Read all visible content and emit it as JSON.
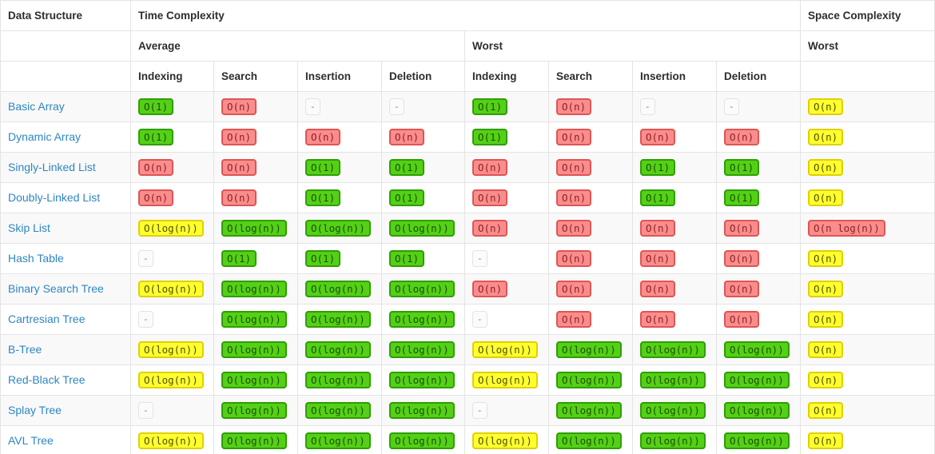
{
  "table": {
    "header": {
      "data_structure": "Data Structure",
      "time_complexity": "Time Complexity",
      "space_complexity": "Space Complexity",
      "average": "Average",
      "worst": "Worst",
      "space_worst": "Worst",
      "ops": [
        "Indexing",
        "Search",
        "Insertion",
        "Deletion",
        "Indexing",
        "Search",
        "Insertion",
        "Deletion"
      ]
    },
    "rows": [
      {
        "name": "Basic Array",
        "cells": [
          {
            "text": "O(1)",
            "level": "green"
          },
          {
            "text": "O(n)",
            "level": "red"
          },
          {
            "text": "-",
            "level": "gray"
          },
          {
            "text": "-",
            "level": "gray"
          },
          {
            "text": "O(1)",
            "level": "green"
          },
          {
            "text": "O(n)",
            "level": "red"
          },
          {
            "text": "-",
            "level": "gray"
          },
          {
            "text": "-",
            "level": "gray"
          },
          {
            "text": "O(n)",
            "level": "yellow"
          }
        ]
      },
      {
        "name": "Dynamic Array",
        "cells": [
          {
            "text": "O(1)",
            "level": "green"
          },
          {
            "text": "O(n)",
            "level": "red"
          },
          {
            "text": "O(n)",
            "level": "red"
          },
          {
            "text": "O(n)",
            "level": "red"
          },
          {
            "text": "O(1)",
            "level": "green"
          },
          {
            "text": "O(n)",
            "level": "red"
          },
          {
            "text": "O(n)",
            "level": "red"
          },
          {
            "text": "O(n)",
            "level": "red"
          },
          {
            "text": "O(n)",
            "level": "yellow"
          }
        ]
      },
      {
        "name": "Singly-Linked List",
        "cells": [
          {
            "text": "O(n)",
            "level": "red"
          },
          {
            "text": "O(n)",
            "level": "red"
          },
          {
            "text": "O(1)",
            "level": "green"
          },
          {
            "text": "O(1)",
            "level": "green"
          },
          {
            "text": "O(n)",
            "level": "red"
          },
          {
            "text": "O(n)",
            "level": "red"
          },
          {
            "text": "O(1)",
            "level": "green"
          },
          {
            "text": "O(1)",
            "level": "green"
          },
          {
            "text": "O(n)",
            "level": "yellow"
          }
        ]
      },
      {
        "name": "Doubly-Linked List",
        "cells": [
          {
            "text": "O(n)",
            "level": "red"
          },
          {
            "text": "O(n)",
            "level": "red"
          },
          {
            "text": "O(1)",
            "level": "green"
          },
          {
            "text": "O(1)",
            "level": "green"
          },
          {
            "text": "O(n)",
            "level": "red"
          },
          {
            "text": "O(n)",
            "level": "red"
          },
          {
            "text": "O(1)",
            "level": "green"
          },
          {
            "text": "O(1)",
            "level": "green"
          },
          {
            "text": "O(n)",
            "level": "yellow"
          }
        ]
      },
      {
        "name": "Skip List",
        "cells": [
          {
            "text": "O(log(n))",
            "level": "yellow"
          },
          {
            "text": "O(log(n))",
            "level": "green"
          },
          {
            "text": "O(log(n))",
            "level": "green"
          },
          {
            "text": "O(log(n))",
            "level": "green"
          },
          {
            "text": "O(n)",
            "level": "red"
          },
          {
            "text": "O(n)",
            "level": "red"
          },
          {
            "text": "O(n)",
            "level": "red"
          },
          {
            "text": "O(n)",
            "level": "red"
          },
          {
            "text": "O(n log(n))",
            "level": "red"
          }
        ]
      },
      {
        "name": "Hash Table",
        "cells": [
          {
            "text": "-",
            "level": "gray"
          },
          {
            "text": "O(1)",
            "level": "green"
          },
          {
            "text": "O(1)",
            "level": "green"
          },
          {
            "text": "O(1)",
            "level": "green"
          },
          {
            "text": "-",
            "level": "gray"
          },
          {
            "text": "O(n)",
            "level": "red"
          },
          {
            "text": "O(n)",
            "level": "red"
          },
          {
            "text": "O(n)",
            "level": "red"
          },
          {
            "text": "O(n)",
            "level": "yellow"
          }
        ]
      },
      {
        "name": "Binary Search Tree",
        "cells": [
          {
            "text": "O(log(n))",
            "level": "yellow"
          },
          {
            "text": "O(log(n))",
            "level": "green"
          },
          {
            "text": "O(log(n))",
            "level": "green"
          },
          {
            "text": "O(log(n))",
            "level": "green"
          },
          {
            "text": "O(n)",
            "level": "red"
          },
          {
            "text": "O(n)",
            "level": "red"
          },
          {
            "text": "O(n)",
            "level": "red"
          },
          {
            "text": "O(n)",
            "level": "red"
          },
          {
            "text": "O(n)",
            "level": "yellow"
          }
        ]
      },
      {
        "name": "Cartresian Tree",
        "cells": [
          {
            "text": "-",
            "level": "gray"
          },
          {
            "text": "O(log(n))",
            "level": "green"
          },
          {
            "text": "O(log(n))",
            "level": "green"
          },
          {
            "text": "O(log(n))",
            "level": "green"
          },
          {
            "text": "-",
            "level": "gray"
          },
          {
            "text": "O(n)",
            "level": "red"
          },
          {
            "text": "O(n)",
            "level": "red"
          },
          {
            "text": "O(n)",
            "level": "red"
          },
          {
            "text": "O(n)",
            "level": "yellow"
          }
        ]
      },
      {
        "name": "B-Tree",
        "cells": [
          {
            "text": "O(log(n))",
            "level": "yellow"
          },
          {
            "text": "O(log(n))",
            "level": "green"
          },
          {
            "text": "O(log(n))",
            "level": "green"
          },
          {
            "text": "O(log(n))",
            "level": "green"
          },
          {
            "text": "O(log(n))",
            "level": "yellow"
          },
          {
            "text": "O(log(n))",
            "level": "green"
          },
          {
            "text": "O(log(n))",
            "level": "green"
          },
          {
            "text": "O(log(n))",
            "level": "green"
          },
          {
            "text": "O(n)",
            "level": "yellow"
          }
        ]
      },
      {
        "name": "Red-Black Tree",
        "cells": [
          {
            "text": "O(log(n))",
            "level": "yellow"
          },
          {
            "text": "O(log(n))",
            "level": "green"
          },
          {
            "text": "O(log(n))",
            "level": "green"
          },
          {
            "text": "O(log(n))",
            "level": "green"
          },
          {
            "text": "O(log(n))",
            "level": "yellow"
          },
          {
            "text": "O(log(n))",
            "level": "green"
          },
          {
            "text": "O(log(n))",
            "level": "green"
          },
          {
            "text": "O(log(n))",
            "level": "green"
          },
          {
            "text": "O(n)",
            "level": "yellow"
          }
        ]
      },
      {
        "name": "Splay Tree",
        "cells": [
          {
            "text": "-",
            "level": "gray"
          },
          {
            "text": "O(log(n))",
            "level": "green"
          },
          {
            "text": "O(log(n))",
            "level": "green"
          },
          {
            "text": "O(log(n))",
            "level": "green"
          },
          {
            "text": "-",
            "level": "gray"
          },
          {
            "text": "O(log(n))",
            "level": "green"
          },
          {
            "text": "O(log(n))",
            "level": "green"
          },
          {
            "text": "O(log(n))",
            "level": "green"
          },
          {
            "text": "O(n)",
            "level": "yellow"
          }
        ]
      },
      {
        "name": "AVL Tree",
        "cells": [
          {
            "text": "O(log(n))",
            "level": "yellow"
          },
          {
            "text": "O(log(n))",
            "level": "green"
          },
          {
            "text": "O(log(n))",
            "level": "green"
          },
          {
            "text": "O(log(n))",
            "level": "green"
          },
          {
            "text": "O(log(n))",
            "level": "yellow"
          },
          {
            "text": "O(log(n))",
            "level": "green"
          },
          {
            "text": "O(log(n))",
            "level": "green"
          },
          {
            "text": "O(log(n))",
            "level": "green"
          },
          {
            "text": "O(n)",
            "level": "yellow"
          }
        ]
      }
    ],
    "levels": {
      "green": {
        "bg": "#54d017",
        "border": "#2f9e00",
        "text": "#1d4f00"
      },
      "red": {
        "bg": "#f98d8d",
        "border": "#e05454",
        "text": "#8f1f1f"
      },
      "yellow": {
        "bg": "#ffff30",
        "border": "#dfd000",
        "text": "#4f4f00"
      },
      "gray": {
        "bg": "#fbfbfb",
        "border": "#e3e3e8",
        "text": "#c75c5c"
      }
    },
    "link_color": "#2e86c1"
  }
}
